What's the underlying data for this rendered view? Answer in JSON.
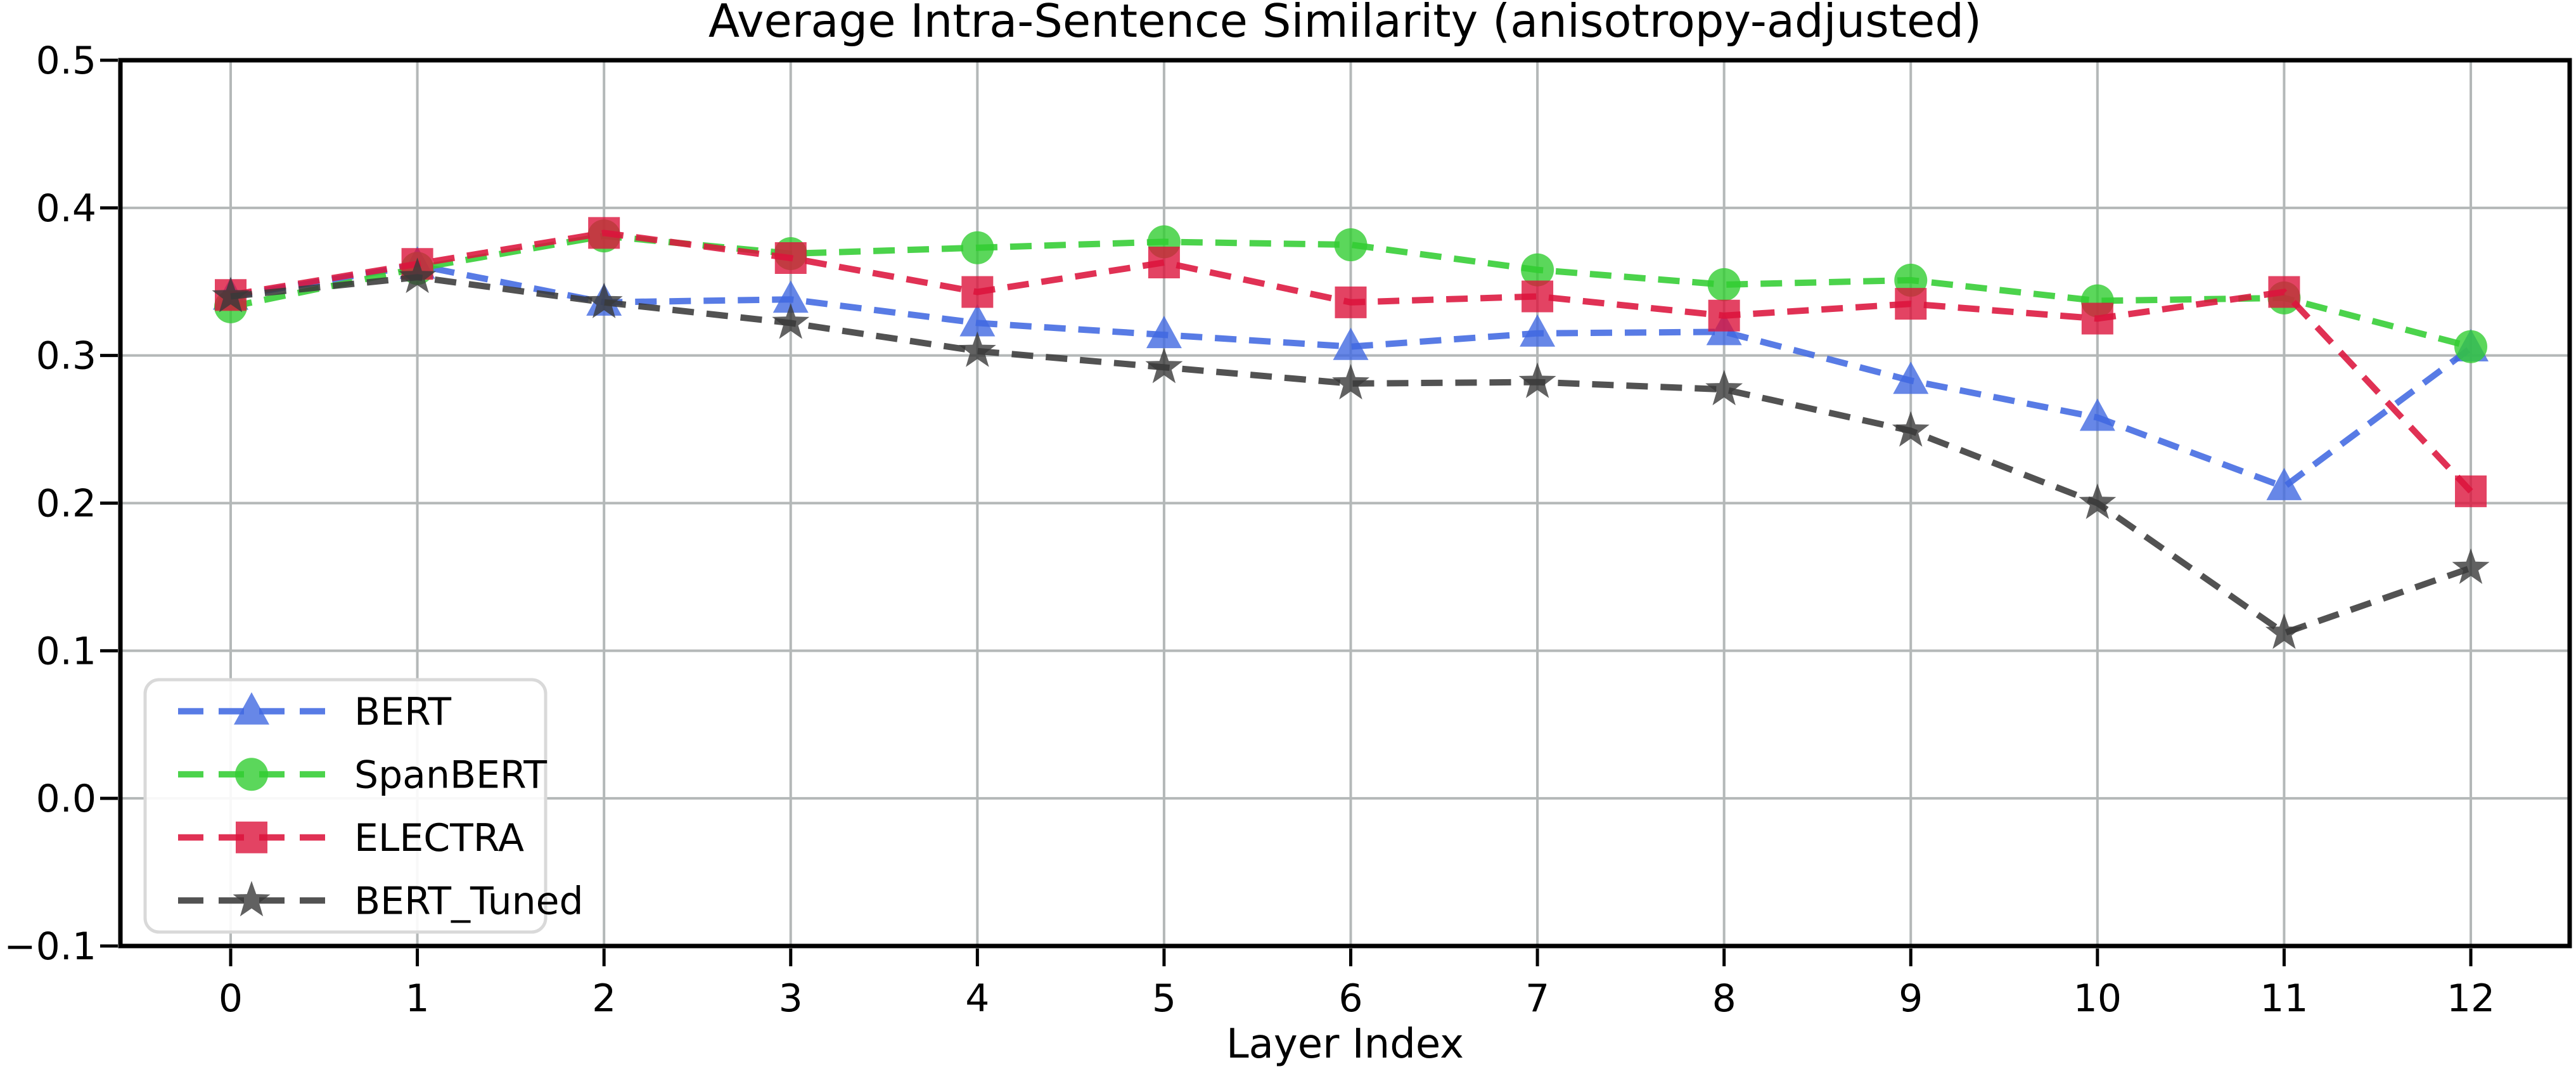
{
  "chart_data": {
    "type": "line",
    "title": "Average Intra-Sentence Similarity (anisotropy-adjusted)",
    "xlabel": "Layer Index",
    "ylabel": "",
    "line_style": "dashed",
    "grid": true,
    "legend_position": "lower left",
    "xlim": [
      -0.6,
      12.6
    ],
    "ylim": [
      -0.1,
      0.5
    ],
    "x": [
      0,
      1,
      2,
      3,
      4,
      5,
      6,
      7,
      8,
      9,
      10,
      11,
      12
    ],
    "xtick_labels": [
      "0",
      "1",
      "2",
      "3",
      "4",
      "5",
      "6",
      "7",
      "8",
      "9",
      "10",
      "11",
      "12"
    ],
    "ytick_values": [
      0.5,
      0.4,
      0.3,
      0.2,
      0.1,
      0.0,
      -0.1
    ],
    "ytick_labels": [
      "0.5",
      "0.4",
      "0.3",
      "0.2",
      "0.1",
      "0.0",
      "−0.1"
    ],
    "series": [
      {
        "name": "BERT",
        "color": "#4169e1",
        "marker": "triangle",
        "values": [
          0.34,
          0.361,
          0.336,
          0.338,
          0.322,
          0.314,
          0.306,
          0.315,
          0.316,
          0.283,
          0.258,
          0.211,
          0.305
        ]
      },
      {
        "name": "SpanBERT",
        "color": "#32cd32",
        "marker": "circle",
        "values": [
          0.333,
          0.359,
          0.381,
          0.369,
          0.373,
          0.377,
          0.375,
          0.358,
          0.348,
          0.351,
          0.337,
          0.339,
          0.306
        ]
      },
      {
        "name": "ELECTRA",
        "color": "#dc143c",
        "marker": "square",
        "values": [
          0.341,
          0.362,
          0.383,
          0.366,
          0.343,
          0.363,
          0.336,
          0.34,
          0.327,
          0.335,
          0.325,
          0.343,
          0.208
        ]
      },
      {
        "name": "BERT_Tuned",
        "color": "#3a3a3a",
        "marker": "star",
        "values": [
          0.34,
          0.353,
          0.336,
          0.322,
          0.303,
          0.292,
          0.281,
          0.282,
          0.277,
          0.249,
          0.2,
          0.112,
          0.156
        ]
      }
    ]
  },
  "legend": {
    "entries": [
      "BERT",
      "SpanBERT",
      "ELECTRA",
      "BERT_Tuned"
    ]
  },
  "colors": {
    "background": "#ffffff",
    "grid": "#b4b8b8",
    "spine": "#000000",
    "tick": "#000000",
    "legend_border": "#d9d9d9",
    "legend_background": "#ffffff"
  }
}
